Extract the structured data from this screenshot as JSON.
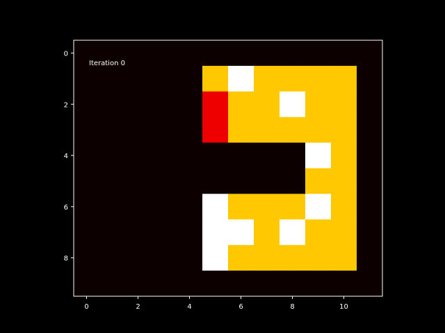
{
  "chart_data": {
    "type": "heatmap",
    "title": "",
    "xlabel": "",
    "ylabel": "",
    "annotation": "Iteration 0",
    "rows": 10,
    "cols": 12,
    "xlim": [
      -0.5,
      11.5
    ],
    "ylim": [
      9.5,
      -0.5
    ],
    "x_ticks": [
      0,
      2,
      4,
      6,
      8,
      10
    ],
    "y_ticks": [
      0,
      2,
      4,
      6,
      8
    ],
    "grid": false,
    "legend": "none",
    "colors": {
      "background": "#000000",
      "axes": "#ffffff",
      "0": "#0c0000",
      "1": "#ffc800",
      "2": "#ffffff",
      "3": "#ee0000"
    },
    "values": [
      [
        0,
        0,
        0,
        0,
        0,
        0,
        0,
        0,
        0,
        0,
        0,
        0
      ],
      [
        0,
        0,
        0,
        0,
        0,
        1,
        2,
        1,
        1,
        1,
        1,
        0
      ],
      [
        0,
        0,
        0,
        0,
        0,
        3,
        1,
        1,
        2,
        1,
        1,
        0
      ],
      [
        0,
        0,
        0,
        0,
        0,
        3,
        1,
        1,
        1,
        1,
        1,
        0
      ],
      [
        0,
        0,
        0,
        0,
        0,
        0,
        0,
        0,
        0,
        2,
        1,
        0
      ],
      [
        0,
        0,
        0,
        0,
        0,
        0,
        0,
        0,
        0,
        1,
        1,
        0
      ],
      [
        0,
        0,
        0,
        0,
        0,
        2,
        1,
        1,
        1,
        2,
        1,
        0
      ],
      [
        0,
        0,
        0,
        0,
        0,
        2,
        2,
        1,
        2,
        1,
        1,
        0
      ],
      [
        0,
        0,
        0,
        0,
        0,
        2,
        1,
        1,
        1,
        1,
        1,
        0
      ],
      [
        0,
        0,
        0,
        0,
        0,
        0,
        0,
        0,
        0,
        0,
        0,
        0
      ]
    ]
  }
}
